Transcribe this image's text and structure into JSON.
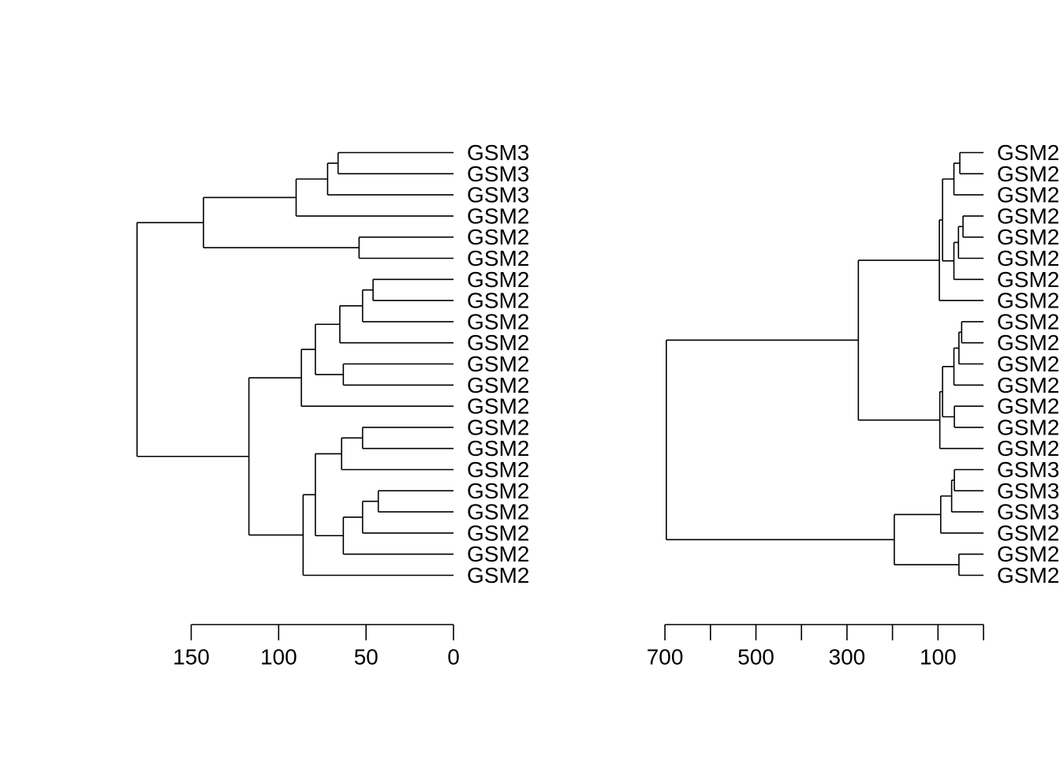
{
  "chart_data": [
    {
      "type": "dendrogram",
      "orientation": "horizontal",
      "title": "",
      "xlabel": "",
      "ylabel": "",
      "axis": {
        "reversed": true,
        "range": [
          0,
          150
        ],
        "ticks": [
          150,
          100,
          50,
          0
        ],
        "tick_labels": [
          "150",
          "100",
          "50",
          "0"
        ]
      },
      "leaves": [
        "GSM3",
        "GSM3",
        "GSM3",
        "GSM2",
        "GSM2",
        "GSM2",
        "GSM2",
        "GSM2",
        "GSM2",
        "GSM2",
        "GSM2",
        "GSM2",
        "GSM2",
        "GSM2",
        "GSM2",
        "GSM2",
        "GSM2",
        "GSM2",
        "GSM2",
        "GSM2",
        "GSM2"
      ],
      "merges": [
        {
          "id": "a1",
          "children": [
            "L0",
            "L1"
          ],
          "height": 66
        },
        {
          "id": "a2",
          "children": [
            "a1",
            "L2"
          ],
          "height": 72
        },
        {
          "id": "a3",
          "children": [
            "a2",
            "L3"
          ],
          "height": 90
        },
        {
          "id": "a4",
          "children": [
            "L4",
            "L5"
          ],
          "height": 54
        },
        {
          "id": "a5",
          "children": [
            "a3",
            "a4"
          ],
          "height": 143
        },
        {
          "id": "b1",
          "children": [
            "L6",
            "L7"
          ],
          "height": 46
        },
        {
          "id": "b2",
          "children": [
            "b1",
            "L8"
          ],
          "height": 52
        },
        {
          "id": "b3",
          "children": [
            "b2",
            "L9"
          ],
          "height": 65
        },
        {
          "id": "b4",
          "children": [
            "L10",
            "L11"
          ],
          "height": 63
        },
        {
          "id": "b5",
          "children": [
            "b3",
            "b4"
          ],
          "height": 79
        },
        {
          "id": "b6",
          "children": [
            "b5",
            "L12"
          ],
          "height": 87
        },
        {
          "id": "c1",
          "children": [
            "L13",
            "L14"
          ],
          "height": 52
        },
        {
          "id": "c2",
          "children": [
            "c1",
            "L15"
          ],
          "height": 64
        },
        {
          "id": "c3",
          "children": [
            "L16",
            "L17"
          ],
          "height": 43
        },
        {
          "id": "c4",
          "children": [
            "c3",
            "L18"
          ],
          "height": 52
        },
        {
          "id": "c5",
          "children": [
            "c4",
            "L19"
          ],
          "height": 63
        },
        {
          "id": "c6",
          "children": [
            "c2",
            "c5"
          ],
          "height": 79
        },
        {
          "id": "c7",
          "children": [
            "c6",
            "L20"
          ],
          "height": 86
        },
        {
          "id": "d1",
          "children": [
            "b6",
            "c7"
          ],
          "height": 117
        },
        {
          "id": "root",
          "children": [
            "a5",
            "d1"
          ],
          "height": 181
        }
      ]
    },
    {
      "type": "dendrogram",
      "orientation": "horizontal",
      "title": "",
      "xlabel": "",
      "ylabel": "",
      "axis": {
        "reversed": true,
        "range": [
          0,
          700
        ],
        "ticks": [
          700,
          600,
          500,
          400,
          300,
          200,
          100,
          0
        ],
        "tick_labels": [
          "700",
          "",
          "500",
          "",
          "300",
          "",
          "100",
          ""
        ]
      },
      "leaves": [
        "GSM2",
        "GSM2",
        "GSM2",
        "GSM2",
        "GSM2",
        "GSM2",
        "GSM2",
        "GSM2",
        "GSM2",
        "GSM2",
        "GSM2",
        "GSM2",
        "GSM2",
        "GSM2",
        "GSM2",
        "GSM3",
        "GSM3",
        "GSM3",
        "GSM2",
        "GSM2",
        "GSM2"
      ],
      "merges": [
        {
          "id": "p1",
          "children": [
            "L0",
            "L1"
          ],
          "height": 52
        },
        {
          "id": "p2",
          "children": [
            "p1",
            "L2"
          ],
          "height": 65
        },
        {
          "id": "p3",
          "children": [
            "L3",
            "L4"
          ],
          "height": 45
        },
        {
          "id": "p4",
          "children": [
            "p3",
            "L5"
          ],
          "height": 55
        },
        {
          "id": "p5",
          "children": [
            "p4",
            "L6"
          ],
          "height": 65
        },
        {
          "id": "p6",
          "children": [
            "p2",
            "p5"
          ],
          "height": 90
        },
        {
          "id": "p7",
          "children": [
            "p6",
            "L7"
          ],
          "height": 97
        },
        {
          "id": "q1",
          "children": [
            "L8",
            "L9"
          ],
          "height": 48
        },
        {
          "id": "q2",
          "children": [
            "q1",
            "L10"
          ],
          "height": 54
        },
        {
          "id": "q3",
          "children": [
            "q2",
            "L11"
          ],
          "height": 65
        },
        {
          "id": "q4",
          "children": [
            "L12",
            "L13"
          ],
          "height": 64
        },
        {
          "id": "q5",
          "children": [
            "q3",
            "q4"
          ],
          "height": 90
        },
        {
          "id": "q6",
          "children": [
            "q5",
            "L14"
          ],
          "height": 96
        },
        {
          "id": "pq",
          "children": [
            "p7",
            "q6"
          ],
          "height": 275
        },
        {
          "id": "r1",
          "children": [
            "L15",
            "L16"
          ],
          "height": 64
        },
        {
          "id": "r2",
          "children": [
            "r1",
            "L17"
          ],
          "height": 70
        },
        {
          "id": "r3",
          "children": [
            "r2",
            "L18"
          ],
          "height": 94
        },
        {
          "id": "r4",
          "children": [
            "L19",
            "L20"
          ],
          "height": 54
        },
        {
          "id": "r5",
          "children": [
            "r3",
            "r4"
          ],
          "height": 196
        },
        {
          "id": "root",
          "children": [
            "pq",
            "r5"
          ],
          "height": 697
        }
      ]
    }
  ]
}
